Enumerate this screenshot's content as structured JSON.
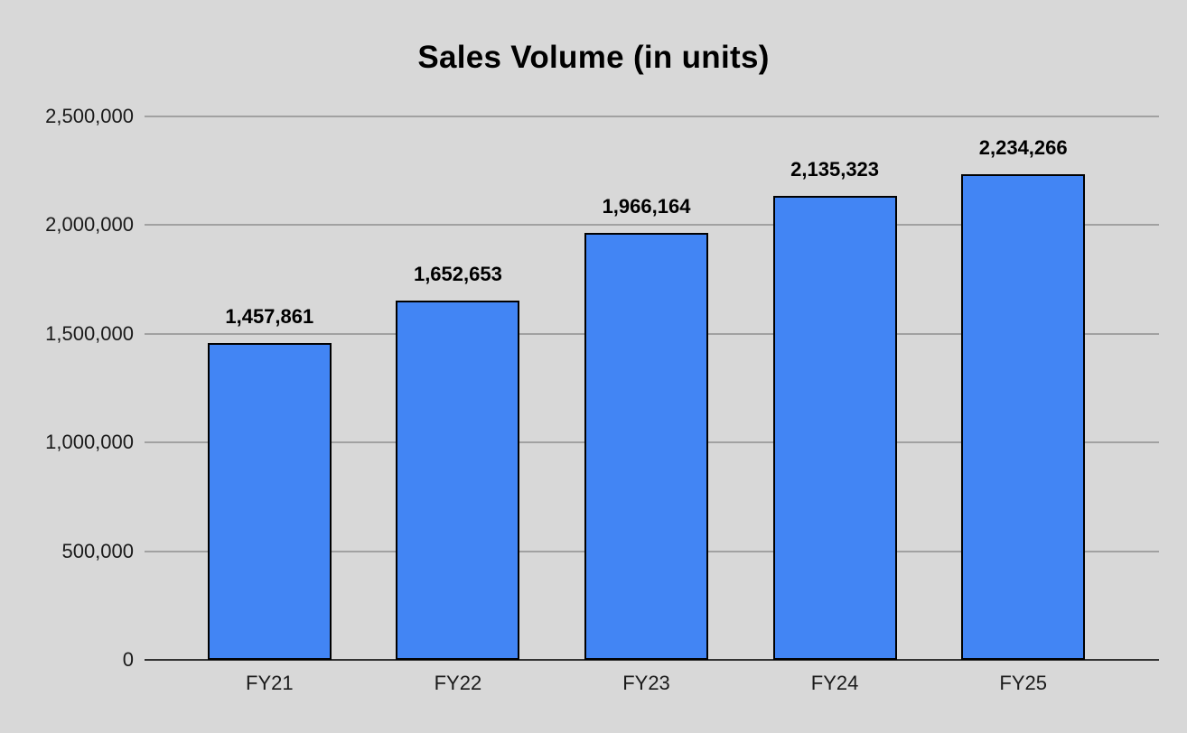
{
  "chart_data": {
    "type": "bar",
    "title": "Sales Volume (in units)",
    "xlabel": "",
    "ylabel": "",
    "categories": [
      "FY21",
      "FY22",
      "FY23",
      "FY24",
      "FY25"
    ],
    "values": [
      1457861,
      1652653,
      1966164,
      2135323,
      2234266
    ],
    "data_labels": [
      "1,457,861",
      "1,652,653",
      "1,966,164",
      "2,135,323",
      "2,234,266"
    ],
    "y_ticks": [
      0,
      500000,
      1000000,
      1500000,
      2000000,
      2500000
    ],
    "y_tick_labels": [
      "0",
      "500,000",
      "1,000,000",
      "1,500,000",
      "2,000,000",
      "2,500,000"
    ],
    "ylim": [
      0,
      2500000
    ],
    "grid": true,
    "legend": "none",
    "colors": {
      "background": "#d8d8d8",
      "bar_fill": "#4285f4",
      "bar_border": "#000000",
      "gridline": "#a1a1a1",
      "axis_line": "#333333",
      "title": "#000000",
      "tick_label": "#1a1a1a",
      "data_label": "#000000"
    }
  }
}
